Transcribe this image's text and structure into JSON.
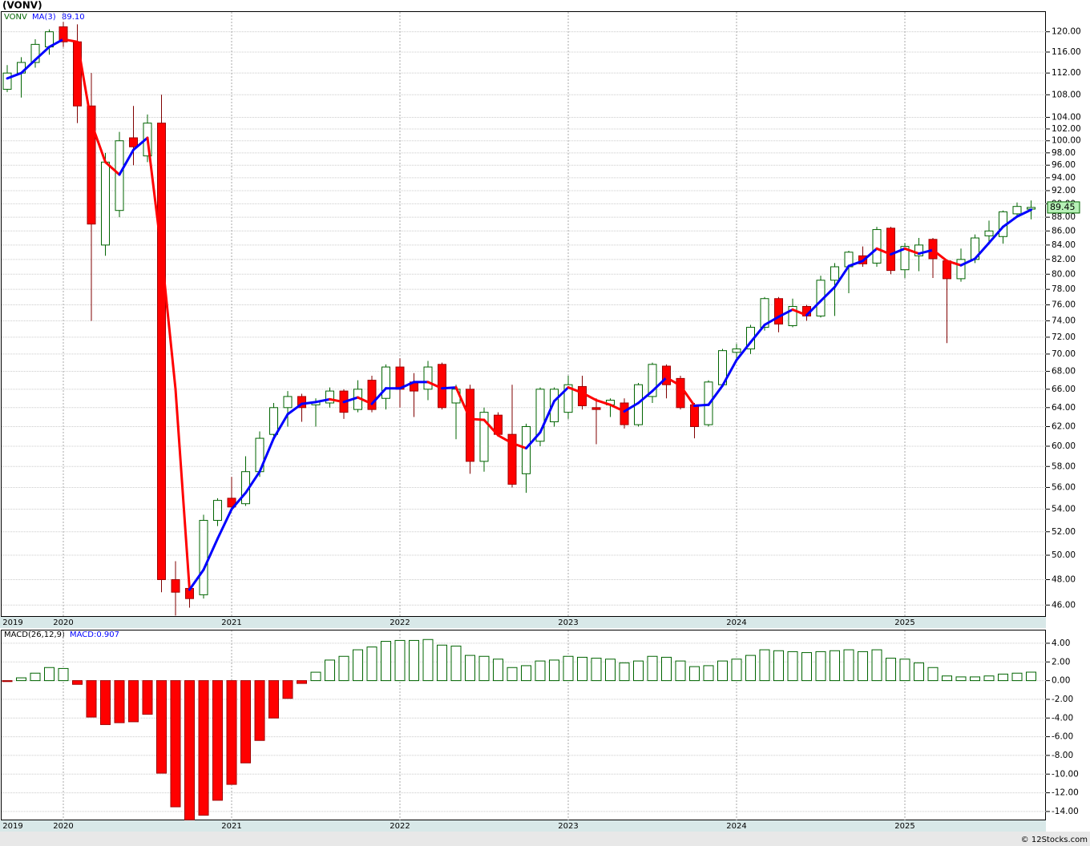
{
  "chart_data": [
    {
      "type": "candlestick",
      "title": "(VONV)",
      "symbol": "VONV",
      "log_scale": true,
      "grid": true,
      "up_color": "#006400",
      "down_color": "#ff0000",
      "ma_up_color": "#0000ff",
      "ma_down_color": "#ff0000",
      "categories": [
        "2019",
        null,
        null,
        null,
        "2020",
        null,
        null,
        null,
        null,
        null,
        null,
        null,
        null,
        null,
        null,
        null,
        "2021",
        null,
        null,
        null,
        null,
        null,
        null,
        null,
        null,
        null,
        null,
        null,
        "2022",
        null,
        null,
        null,
        null,
        null,
        null,
        null,
        null,
        null,
        null,
        null,
        "2023",
        null,
        null,
        null,
        null,
        null,
        null,
        null,
        null,
        null,
        null,
        null,
        "2024",
        null,
        null,
        null,
        null,
        null,
        null,
        null,
        null,
        null,
        null,
        null,
        "2025",
        null,
        null,
        null,
        null,
        null,
        null,
        null,
        null,
        null
      ],
      "open": [
        109,
        112,
        114,
        117,
        121,
        118,
        106,
        84,
        89,
        100.5,
        97.5,
        103,
        48,
        47.3,
        46.8,
        53,
        55,
        54.5,
        57.5,
        61.2,
        64,
        65.2,
        64.3,
        64.5,
        65.8,
        63.8,
        67,
        65,
        68.5,
        66.8,
        66,
        68.8,
        64.5,
        66,
        58.5,
        63.2,
        61.2,
        57.3,
        60.5,
        62.5,
        63.5,
        66.3,
        64,
        64.3,
        64.5,
        62.2,
        65.2,
        68.6,
        67.2,
        64.3,
        62.2,
        66.5,
        70.2,
        70.6,
        73.2,
        76.8,
        73.4,
        75.8,
        74.6,
        79.2,
        81,
        82.5,
        81.5,
        86.4,
        80.6,
        82.5,
        84.8,
        81.8,
        79.4,
        82,
        85.3,
        85.2,
        88.5,
        89.2
      ],
      "high": [
        113.5,
        115,
        118.5,
        120.5,
        122,
        121.5,
        112,
        98,
        101.5,
        106,
        104.5,
        108,
        49.5,
        48,
        53.5,
        55,
        57,
        59,
        61.5,
        64.5,
        65.8,
        65.5,
        65,
        66.2,
        66,
        67,
        67.5,
        68.8,
        69.5,
        67.8,
        69.2,
        69,
        66.5,
        66.5,
        64,
        63.5,
        66.5,
        62.3,
        66.2,
        66.2,
        67.5,
        67.5,
        65,
        65,
        65,
        66.7,
        69,
        68.8,
        67.5,
        64.5,
        67,
        70.6,
        71.2,
        73.5,
        77,
        77,
        76.8,
        76,
        79.8,
        81.5,
        83.2,
        83.8,
        86.6,
        86.6,
        84.3,
        85,
        85,
        82,
        83.5,
        85.5,
        87.5,
        89,
        90.2,
        90.5
      ],
      "low": [
        108.5,
        107.5,
        113,
        115.5,
        117,
        103,
        74,
        82.5,
        88,
        96,
        96.5,
        47,
        45.2,
        45.8,
        46.5,
        52.5,
        54,
        54.3,
        57,
        61,
        62,
        62.5,
        62,
        64,
        62.8,
        63.5,
        63.5,
        63.8,
        64,
        63,
        64.8,
        63.8,
        60.7,
        57.3,
        57.5,
        61,
        56,
        55.5,
        60,
        62,
        62.8,
        63.8,
        60.2,
        63,
        61.8,
        62,
        64.5,
        65,
        63.8,
        60.8,
        62,
        66.5,
        69.5,
        70,
        72.8,
        72.6,
        73.2,
        74,
        74.4,
        74.6,
        77.5,
        81,
        81,
        80,
        79.5,
        80.4,
        79.5,
        71.3,
        79,
        81.5,
        84.5,
        84.2,
        88,
        87.7
      ],
      "close": [
        112,
        114,
        117.5,
        120,
        118,
        106,
        87,
        96.5,
        100,
        99,
        103,
        48,
        47,
        46.5,
        53,
        54.8,
        54.2,
        57.5,
        60.8,
        64,
        65.2,
        64,
        64.6,
        65.8,
        63.5,
        66,
        63.8,
        68.5,
        66,
        65.8,
        68.5,
        64,
        66,
        58.5,
        63.5,
        61.2,
        56.3,
        62,
        66,
        66,
        66.5,
        64.2,
        63.8,
        64.8,
        62.2,
        66.5,
        68.8,
        66.5,
        64,
        62,
        66.8,
        70.4,
        70.6,
        73.2,
        76.8,
        73.6,
        75.8,
        74.6,
        79.2,
        81,
        83,
        81.4,
        86.2,
        80.5,
        83.8,
        84,
        82.1,
        79.4,
        82,
        85,
        86,
        88.8,
        89.6,
        89.45
      ],
      "close_label": "89.45",
      "ma": {
        "name": "MA(3)",
        "last_label": "89.10",
        "values": [
          111,
          112,
          114.5,
          117,
          118.5,
          118,
          103,
          96.5,
          94.5,
          98.5,
          100.5,
          83,
          66,
          47.2,
          48.8,
          51.4,
          54,
          55.5,
          57.5,
          60.8,
          63.3,
          64.4,
          64.6,
          64.9,
          64.6,
          65.1,
          64.4,
          66.1,
          66.1,
          66.8,
          66.8,
          66.1,
          66.2,
          62.8,
          62.7,
          61.1,
          60.3,
          59.8,
          61.4,
          64.7,
          66.2,
          65.6,
          64.8,
          64.3,
          63.6,
          64.5,
          65.8,
          67.3,
          66.4,
          64.2,
          64.3,
          66.4,
          69.3,
          71.4,
          73.5,
          74.5,
          75.4,
          74.7,
          76.5,
          78.3,
          81.1,
          81.8,
          83.5,
          82.7,
          83.5,
          82.8,
          83.3,
          81.8,
          81.2,
          82.1,
          84.3,
          86.6,
          88.1,
          89.1
        ]
      },
      "ylim": [
        45.1,
        124.2
      ],
      "yticks": [
        {
          "value": 46,
          "label": "46.00"
        },
        {
          "value": 48,
          "label": "48.00"
        },
        {
          "value": 50,
          "label": "50.00"
        },
        {
          "value": 52,
          "label": "52.00"
        },
        {
          "value": 54,
          "label": "54.00"
        },
        {
          "value": 56,
          "label": "56.00"
        },
        {
          "value": 58,
          "label": "58.00"
        },
        {
          "value": 60,
          "label": "60.00"
        },
        {
          "value": 62,
          "label": "62.00"
        },
        {
          "value": 64,
          "label": "64.00"
        },
        {
          "value": 66,
          "label": "66.00"
        },
        {
          "value": 68,
          "label": "68.00"
        },
        {
          "value": 70,
          "label": "70.00"
        },
        {
          "value": 72,
          "label": "72.00"
        },
        {
          "value": 74,
          "label": "74.00"
        },
        {
          "value": 76,
          "label": "76.00"
        },
        {
          "value": 78,
          "label": "78.00"
        },
        {
          "value": 80,
          "label": "80.00"
        },
        {
          "value": 82,
          "label": "82.00"
        },
        {
          "value": 84,
          "label": "84.00"
        },
        {
          "value": 86,
          "label": "86.00"
        },
        {
          "value": 88,
          "label": "88.00"
        },
        {
          "value": 90,
          "label": "90.00"
        },
        {
          "value": 92,
          "label": "92.00"
        },
        {
          "value": 94,
          "label": "94.00"
        },
        {
          "value": 96,
          "label": "96.00"
        },
        {
          "value": 98,
          "label": "98.00"
        },
        {
          "value": 100,
          "label": "100.00"
        },
        {
          "value": 102,
          "label": "102.00"
        },
        {
          "value": 104,
          "label": "104.00"
        },
        {
          "value": 108,
          "label": "108.00"
        },
        {
          "value": 112,
          "label": "112.00"
        },
        {
          "value": 116,
          "label": "116.00"
        },
        {
          "value": 120,
          "label": "120.00"
        }
      ]
    },
    {
      "type": "bar",
      "title": "MACD(26,12,9)",
      "value_label": "MACD:0.907",
      "grid": true,
      "up_color": "#006400",
      "down_color": "#ff0000",
      "values": [
        -0.1,
        0.3,
        0.8,
        1.4,
        1.3,
        -0.4,
        -3.9,
        -4.7,
        -4.5,
        -4.4,
        -3.6,
        -9.9,
        -13.5,
        -14.9,
        -14.4,
        -12.8,
        -11.1,
        -8.8,
        -6.4,
        -4.0,
        -1.9,
        -0.3,
        0.9,
        2.2,
        2.6,
        3.3,
        3.6,
        4.2,
        4.3,
        4.3,
        4.4,
        3.8,
        3.7,
        2.7,
        2.6,
        2.3,
        1.4,
        1.6,
        2.1,
        2.2,
        2.6,
        2.5,
        2.4,
        2.3,
        1.9,
        2.1,
        2.6,
        2.5,
        2.1,
        1.5,
        1.6,
        2.1,
        2.3,
        2.7,
        3.3,
        3.2,
        3.1,
        3.0,
        3.1,
        3.2,
        3.3,
        3.1,
        3.3,
        2.4,
        2.3,
        1.9,
        1.4,
        0.5,
        0.4,
        0.4,
        0.5,
        0.7,
        0.8,
        0.907
      ],
      "ylim": [
        -14.95,
        5.45
      ],
      "yticks": [
        {
          "value": 4,
          "label": "4.00"
        },
        {
          "value": 2,
          "label": "2.00"
        },
        {
          "value": 0,
          "label": "0.00"
        },
        {
          "value": -2,
          "label": "-2.00"
        },
        {
          "value": -4,
          "label": "-4.00"
        },
        {
          "value": -6,
          "label": "-6.00"
        },
        {
          "value": -8,
          "label": "-8.00"
        },
        {
          "value": -10,
          "label": "-10.00"
        },
        {
          "value": -12,
          "label": "-12.00"
        },
        {
          "value": -14,
          "label": "-14.00"
        }
      ]
    }
  ],
  "footer": "© 12Stocks.com"
}
